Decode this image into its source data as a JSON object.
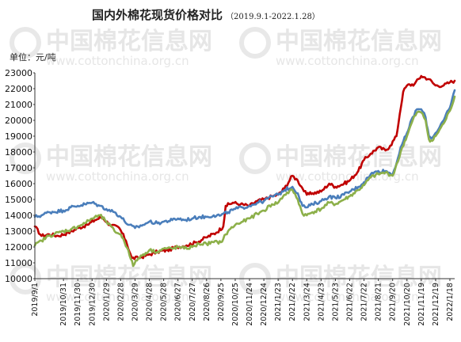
{
  "chart_data": {
    "type": "line",
    "title": "国内外棉花现货价格对比",
    "subtitle": "（2019.9.1-2022.1.28）",
    "unit_label": "单位：元/吨",
    "watermark": {
      "brand": "中国棉花信息网",
      "url": "www.cottonchina.org.cn"
    },
    "ylim": [
      10000,
      23000
    ],
    "yticks": [
      10000,
      11000,
      12000,
      13000,
      14000,
      15000,
      16000,
      17000,
      18000,
      19000,
      20000,
      21000,
      22000,
      23000
    ],
    "x_range": [
      "2019-09-01",
      "2022-01-28"
    ],
    "xticks": [
      "2019/9/1",
      "2019/10/31",
      "2019/11/30",
      "2019/12/30",
      "2020/1/29",
      "2020/2/28",
      "2020/3/29",
      "2020/4/28",
      "2020/5/28",
      "2020/6/27",
      "2020/7/27",
      "2020/8/26",
      "2020/9/25",
      "2020/10/25",
      "2020/11/24",
      "2020/12/24",
      "2021/1/23",
      "2021/2/22",
      "2021/3/24",
      "2021/4/23",
      "2021/5/23",
      "2021/6/22",
      "2021/7/22",
      "2021/8/21",
      "2021/9/20",
      "2021/10/20",
      "2021/11/19",
      "2021/12/19",
      "2022/1/18"
    ],
    "grid": false,
    "legend": "none",
    "series": [
      {
        "color": "#c00000",
        "points": [
          [
            "2019-09-01",
            13300
          ],
          [
            "2019-09-15",
            12700
          ],
          [
            "2019-10-01",
            12800
          ],
          [
            "2019-10-20",
            12700
          ],
          [
            "2019-11-10",
            12900
          ],
          [
            "2019-12-01",
            13200
          ],
          [
            "2019-12-20",
            13400
          ],
          [
            "2020-01-05",
            13700
          ],
          [
            "2020-01-20",
            13900
          ],
          [
            "2020-02-05",
            13400
          ],
          [
            "2020-02-25",
            13200
          ],
          [
            "2020-03-10",
            12400
          ],
          [
            "2020-03-22",
            11300
          ],
          [
            "2020-04-05",
            11300
          ],
          [
            "2020-04-25",
            11500
          ],
          [
            "2020-05-15",
            11700
          ],
          [
            "2020-06-05",
            11800
          ],
          [
            "2020-06-25",
            12000
          ],
          [
            "2020-07-15",
            12100
          ],
          [
            "2020-08-05",
            12300
          ],
          [
            "2020-08-25",
            12600
          ],
          [
            "2020-09-15",
            12900
          ],
          [
            "2020-09-30",
            13300
          ],
          [
            "2020-10-05",
            14600
          ],
          [
            "2020-10-20",
            14800
          ],
          [
            "2020-11-05",
            14700
          ],
          [
            "2020-11-24",
            14600
          ],
          [
            "2020-12-10",
            14900
          ],
          [
            "2020-12-24",
            15000
          ],
          [
            "2021-01-10",
            15200
          ],
          [
            "2021-01-23",
            15300
          ],
          [
            "2021-02-05",
            15700
          ],
          [
            "2021-02-22",
            16500
          ],
          [
            "2021-03-05",
            16200
          ],
          [
            "2021-03-15",
            15700
          ],
          [
            "2021-03-24",
            15300
          ],
          [
            "2021-04-05",
            15400
          ],
          [
            "2021-04-23",
            15500
          ],
          [
            "2021-05-10",
            16000
          ],
          [
            "2021-05-23",
            15800
          ],
          [
            "2021-06-10",
            16000
          ],
          [
            "2021-06-22",
            16200
          ],
          [
            "2021-07-10",
            16800
          ],
          [
            "2021-07-22",
            17500
          ],
          [
            "2021-08-05",
            17900
          ],
          [
            "2021-08-21",
            18300
          ],
          [
            "2021-09-05",
            18100
          ],
          [
            "2021-09-15",
            18400
          ],
          [
            "2021-09-28",
            19000
          ],
          [
            "2021-10-05",
            20400
          ],
          [
            "2021-10-12",
            21800
          ],
          [
            "2021-10-20",
            22200
          ],
          [
            "2021-11-05",
            22300
          ],
          [
            "2021-11-19",
            22800
          ],
          [
            "2021-12-05",
            22600
          ],
          [
            "2021-12-19",
            22200
          ],
          [
            "2022-01-05",
            22200
          ],
          [
            "2022-01-18",
            22400
          ],
          [
            "2022-01-28",
            22500
          ]
        ]
      },
      {
        "color": "#4a7ebb",
        "points": [
          [
            "2019-09-01",
            13900
          ],
          [
            "2019-09-15",
            14000
          ],
          [
            "2019-09-30",
            14200
          ],
          [
            "2019-10-31",
            14300
          ],
          [
            "2019-11-15",
            14500
          ],
          [
            "2019-11-30",
            14600
          ],
          [
            "2019-12-15",
            14700
          ],
          [
            "2019-12-30",
            14800
          ],
          [
            "2020-01-15",
            14600
          ],
          [
            "2020-01-29",
            14400
          ],
          [
            "2020-02-15",
            14200
          ],
          [
            "2020-02-28",
            13900
          ],
          [
            "2020-03-15",
            13400
          ],
          [
            "2020-03-29",
            13200
          ],
          [
            "2020-04-15",
            13400
          ],
          [
            "2020-04-28",
            13600
          ],
          [
            "2020-05-15",
            13500
          ],
          [
            "2020-05-28",
            13600
          ],
          [
            "2020-06-15",
            13700
          ],
          [
            "2020-06-27",
            13800
          ],
          [
            "2020-07-10",
            13700
          ],
          [
            "2020-07-27",
            13800
          ],
          [
            "2020-08-10",
            13900
          ],
          [
            "2020-08-26",
            13900
          ],
          [
            "2020-09-10",
            14000
          ],
          [
            "2020-09-25",
            14000
          ],
          [
            "2020-10-10",
            14200
          ],
          [
            "2020-10-25",
            14400
          ],
          [
            "2020-11-10",
            14500
          ],
          [
            "2020-11-24",
            14600
          ],
          [
            "2020-12-10",
            14800
          ],
          [
            "2020-12-24",
            14900
          ],
          [
            "2021-01-10",
            15200
          ],
          [
            "2021-01-23",
            15300
          ],
          [
            "2021-02-05",
            15600
          ],
          [
            "2021-02-22",
            15800
          ],
          [
            "2021-03-05",
            15400
          ],
          [
            "2021-03-15",
            14600
          ],
          [
            "2021-03-24",
            14500
          ],
          [
            "2021-04-05",
            14700
          ],
          [
            "2021-04-23",
            14900
          ],
          [
            "2021-05-10",
            15200
          ],
          [
            "2021-05-23",
            15100
          ],
          [
            "2021-06-10",
            15300
          ],
          [
            "2021-06-22",
            15500
          ],
          [
            "2021-07-10",
            15800
          ],
          [
            "2021-07-22",
            16100
          ],
          [
            "2021-08-05",
            16600
          ],
          [
            "2021-08-21",
            16800
          ],
          [
            "2021-09-05",
            16800
          ],
          [
            "2021-09-20",
            16600
          ],
          [
            "2021-10-01",
            17600
          ],
          [
            "2021-10-10",
            18500
          ],
          [
            "2021-10-20",
            19200
          ],
          [
            "2021-11-01",
            20200
          ],
          [
            "2021-11-10",
            20700
          ],
          [
            "2021-11-19",
            20700
          ],
          [
            "2021-11-28",
            20200
          ],
          [
            "2021-12-05",
            19000
          ],
          [
            "2021-12-12",
            18900
          ],
          [
            "2021-12-19",
            19200
          ],
          [
            "2022-01-05",
            20000
          ],
          [
            "2022-01-18",
            20800
          ],
          [
            "2022-01-28",
            21900
          ]
        ]
      },
      {
        "color": "#8db04a",
        "points": [
          [
            "2019-09-01",
            12100
          ],
          [
            "2019-09-15",
            12400
          ],
          [
            "2019-09-30",
            12700
          ],
          [
            "2019-10-31",
            13000
          ],
          [
            "2019-11-15",
            13100
          ],
          [
            "2019-11-30",
            13300
          ],
          [
            "2019-12-15",
            13500
          ],
          [
            "2019-12-30",
            13800
          ],
          [
            "2020-01-15",
            14000
          ],
          [
            "2020-01-29",
            13600
          ],
          [
            "2020-02-15",
            13000
          ],
          [
            "2020-02-28",
            12800
          ],
          [
            "2020-03-15",
            11800
          ],
          [
            "2020-03-25",
            10800
          ],
          [
            "2020-04-05",
            11300
          ],
          [
            "2020-04-28",
            11800
          ],
          [
            "2020-05-15",
            11700
          ],
          [
            "2020-05-28",
            11900
          ],
          [
            "2020-06-15",
            11900
          ],
          [
            "2020-06-27",
            12000
          ],
          [
            "2020-07-10",
            11900
          ],
          [
            "2020-07-27",
            12000
          ],
          [
            "2020-08-10",
            12200
          ],
          [
            "2020-08-26",
            12200
          ],
          [
            "2020-09-10",
            12300
          ],
          [
            "2020-09-25",
            12300
          ],
          [
            "2020-10-10",
            13000
          ],
          [
            "2020-10-25",
            13400
          ],
          [
            "2020-11-10",
            13600
          ],
          [
            "2020-11-24",
            13800
          ],
          [
            "2020-12-10",
            14100
          ],
          [
            "2020-12-24",
            14300
          ],
          [
            "2021-01-10",
            14700
          ],
          [
            "2021-01-23",
            14800
          ],
          [
            "2021-02-05",
            15300
          ],
          [
            "2021-02-22",
            15600
          ],
          [
            "2021-03-05",
            15000
          ],
          [
            "2021-03-15",
            14100
          ],
          [
            "2021-03-24",
            14000
          ],
          [
            "2021-04-05",
            14200
          ],
          [
            "2021-04-23",
            14400
          ],
          [
            "2021-05-10",
            14800
          ],
          [
            "2021-05-23",
            14700
          ],
          [
            "2021-06-10",
            15000
          ],
          [
            "2021-06-22",
            15200
          ],
          [
            "2021-07-10",
            15600
          ],
          [
            "2021-07-22",
            15900
          ],
          [
            "2021-08-05",
            16400
          ],
          [
            "2021-08-21",
            16600
          ],
          [
            "2021-09-05",
            16700
          ],
          [
            "2021-09-20",
            16500
          ],
          [
            "2021-10-01",
            17400
          ],
          [
            "2021-10-10",
            18300
          ],
          [
            "2021-10-20",
            19000
          ],
          [
            "2021-11-01",
            20000
          ],
          [
            "2021-11-10",
            20500
          ],
          [
            "2021-11-19",
            20500
          ],
          [
            "2021-11-28",
            20000
          ],
          [
            "2021-12-05",
            18800
          ],
          [
            "2021-12-12",
            18700
          ],
          [
            "2021-12-19",
            19000
          ],
          [
            "2022-01-05",
            19800
          ],
          [
            "2022-01-18",
            20600
          ],
          [
            "2022-01-28",
            21500
          ]
        ]
      }
    ]
  }
}
